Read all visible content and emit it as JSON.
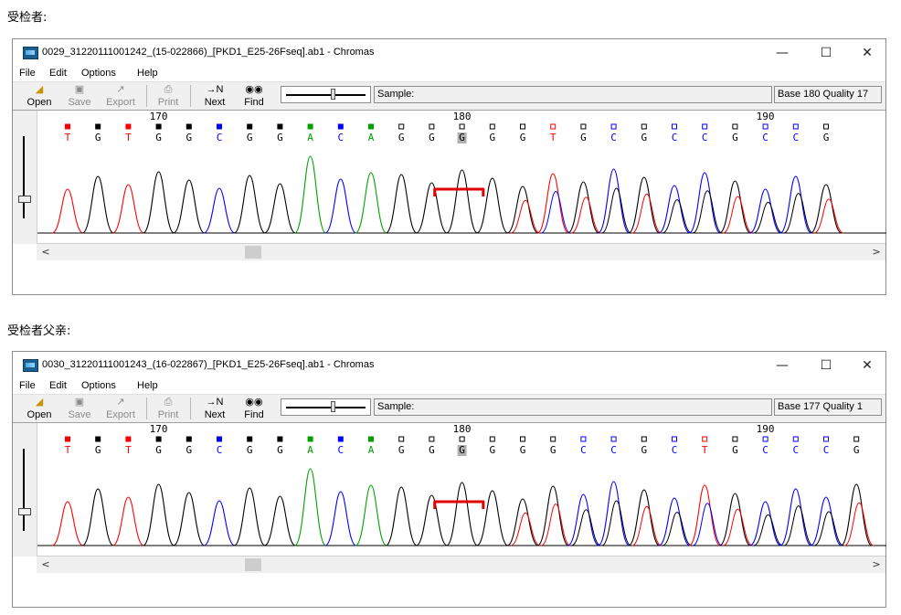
{
  "panels": [
    {
      "caption": "受检者:",
      "window_title": "0029_31220111001242_(15-022866)_[PKD1_E25-26Fseq].ab1 - Chromas",
      "base_info": "Base 180  Quality 17",
      "positions": [
        "170",
        "180",
        "190"
      ],
      "sequence": [
        "T",
        "G",
        "T",
        "G",
        "G",
        "C",
        "G",
        "G",
        "A",
        "C",
        "A",
        "G",
        "G",
        "G",
        "G",
        "G",
        "T",
        "G",
        "C",
        "G",
        "C",
        "C",
        "G",
        "C",
        "C",
        "G"
      ],
      "highlight_index": 13,
      "mixed_from_index": 15
    },
    {
      "caption": "受检者父亲:",
      "window_title": "0030_31220111001243_(16-022867)_[PKD1_E25-26Fseq].ab1 - Chromas",
      "base_info": "Base 177  Quality 1",
      "positions": [
        "170",
        "180",
        "190"
      ],
      "sequence": [
        "T",
        "G",
        "T",
        "G",
        "G",
        "C",
        "G",
        "G",
        "A",
        "C",
        "A",
        "G",
        "G",
        "G",
        "G",
        "G",
        "G",
        "C",
        "C",
        "G",
        "C",
        "T",
        "G",
        "C",
        "C",
        "C",
        "G"
      ],
      "highlight_index": 13,
      "mixed_from_index": 15
    }
  ],
  "menu": [
    "File",
    "Edit",
    "Options",
    "Help"
  ],
  "toolbar": {
    "open": "Open",
    "save": "Save",
    "export": "Export",
    "print": "Print",
    "next": "Next",
    "find": "Find",
    "next_icon": "→N"
  },
  "sample_label": "Sample:",
  "window_controls": {
    "minimize": "—",
    "maximize": "☐",
    "close": "✕"
  },
  "scroll_arrows": {
    "left": "<",
    "right": ">"
  },
  "colors": {
    "A": "#00a000",
    "C": "#0000ff",
    "G": "#000000",
    "T": "#ff0000",
    "bracket": "#e00000"
  }
}
